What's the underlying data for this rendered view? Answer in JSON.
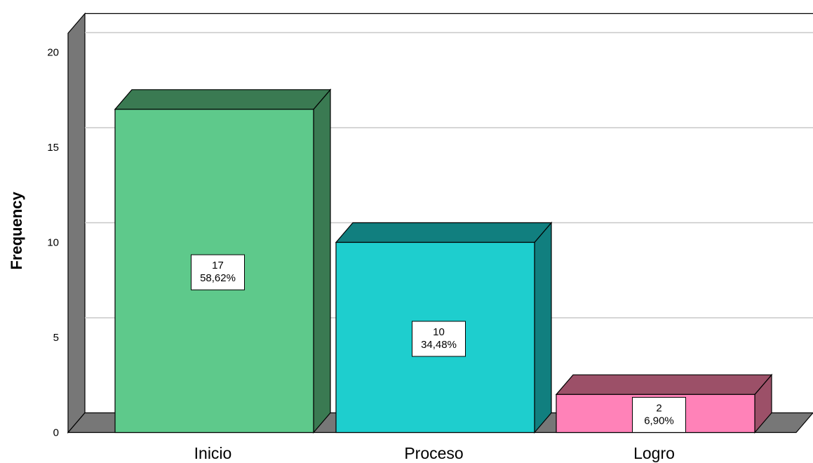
{
  "chart_data": {
    "type": "bar",
    "categories": [
      "Inicio",
      "Proceso",
      "Logro"
    ],
    "values": [
      17,
      10,
      2
    ],
    "data_labels": [
      {
        "count": "17",
        "percent": "58,62%"
      },
      {
        "count": "10",
        "percent": "34,48%"
      },
      {
        "count": "2",
        "percent": "6,90%"
      }
    ],
    "ylabel": "Frequency",
    "xlabel": "",
    "ylim": [
      0,
      21
    ],
    "yticks": [
      "0",
      "5",
      "10",
      "15",
      "20"
    ],
    "grid": true,
    "three_d": true,
    "colors": {
      "front": [
        "#5ec98b",
        "#1ecece",
        "#ff82b8"
      ],
      "side": [
        "#3a7a52",
        "#117f7f",
        "#9c5068"
      ],
      "wall": "#777777",
      "gridline": "#c8c8c8"
    }
  }
}
